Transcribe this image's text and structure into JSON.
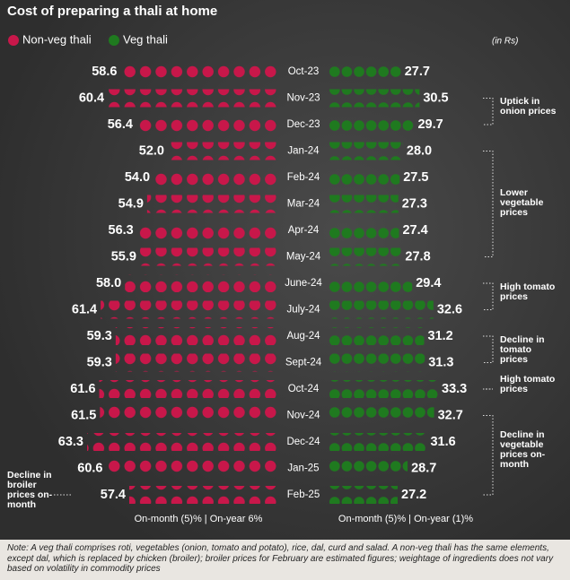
{
  "chart_data": {
    "type": "dot",
    "title": "Cost of preparing a thali at home",
    "unit_note": "(in Rs)",
    "categories": [
      "Oct-23",
      "Nov-23",
      "Dec-23",
      "Jan-24",
      "Feb-24",
      "Mar-24",
      "Apr-24",
      "May-24",
      "June-24",
      "July-24",
      "Aug-24",
      "Sept-24",
      "Oct-24",
      "Nov-24",
      "Dec-24",
      "Jan-25",
      "Feb-25"
    ],
    "series": [
      {
        "name": "Non-veg thali",
        "color": "#c8174a",
        "values": [
          58.6,
          60.4,
          56.4,
          52.0,
          54.0,
          54.9,
          56.3,
          55.9,
          58.0,
          61.4,
          59.3,
          59.3,
          61.6,
          61.5,
          63.3,
          60.6,
          57.4
        ],
        "value_labels": [
          "58.6",
          "60.4",
          "56.4",
          "52.0",
          "54.0",
          "54.9",
          "56.3",
          "55.9",
          "58.0",
          "61.4",
          "59.3",
          "59.3",
          "61.6",
          "61.5",
          "63.3",
          "60.6",
          "57.4"
        ],
        "summary": "On-month (5)% | On-year 6%"
      },
      {
        "name": "Veg thali",
        "color": "#1f7a1f",
        "values": [
          27.7,
          30.5,
          29.7,
          28.0,
          27.5,
          27.3,
          27.4,
          27.8,
          29.4,
          32.6,
          31.2,
          31.3,
          33.3,
          32.7,
          31.6,
          28.7,
          27.2
        ],
        "value_labels": [
          "27.7",
          "30.5",
          "29.7",
          "28.0",
          "27.5",
          "27.3",
          "27.4",
          "27.8",
          "29.4",
          "32.6",
          "31.2",
          "31.3",
          "33.3",
          "32.7",
          "31.6",
          "28.7",
          "27.2"
        ],
        "summary": "On-month (5)% | On-year (1)%"
      }
    ],
    "annotations": [
      {
        "text": "Uptick in onion prices"
      },
      {
        "text": "Lower vegetable prices"
      },
      {
        "text": "High tomato prices"
      },
      {
        "text": "Decline in tomato prices"
      },
      {
        "text": "High tomato prices"
      },
      {
        "text": "Decline in vegetable prices on-month"
      },
      {
        "text": "Decline in broiler prices on-month"
      }
    ],
    "note": "Note: A veg thali comprises roti, vegetables (onion, tomato and potato), rice, dal, curd and salad. A non-veg thali has the same elements, except dal, which is replaced by chicken (broiler); broiler prices for February are estimated figures; weightage of ingredients does not vary based on volatility in commodity prices"
  }
}
